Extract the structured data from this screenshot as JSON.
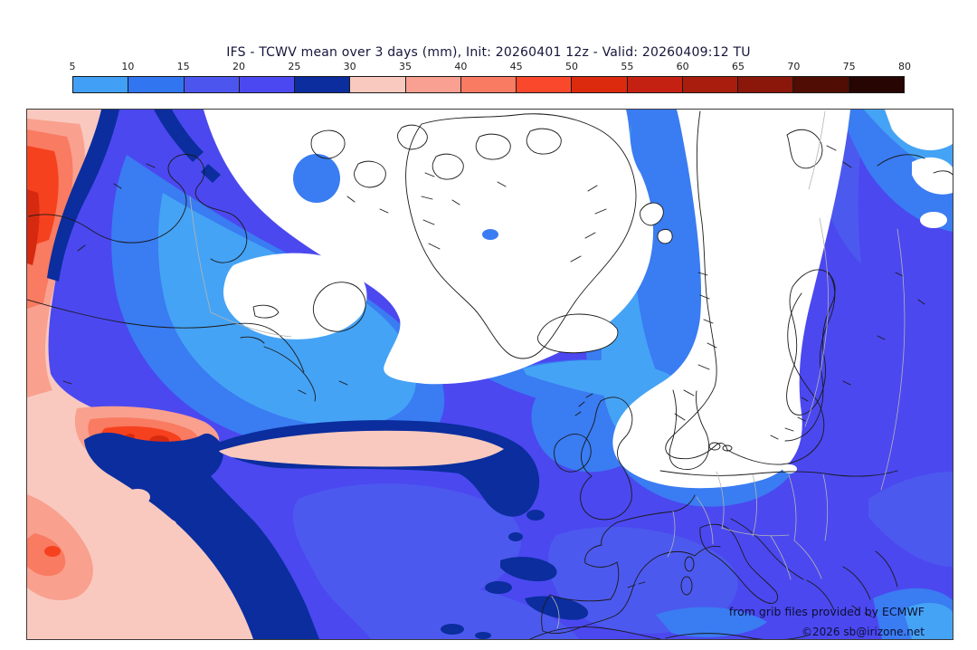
{
  "header": {
    "title": "IFS - TCWV mean over 3 days (mm), Init: 20260401 12z - Valid: 20260409:12 TU"
  },
  "colorbar": {
    "ticks": [
      "5",
      "10",
      "15",
      "20",
      "25",
      "30",
      "35",
      "40",
      "45",
      "50",
      "55",
      "60",
      "65",
      "70",
      "75",
      "80"
    ],
    "segment_colors": [
      "#41a0f5",
      "#3175f1",
      "#4c55ee",
      "#4c48f1",
      "#0b2d9e",
      "#f9c9bf",
      "#f9a093",
      "#f97b62",
      "#f9482c",
      "#dc2a0e",
      "#c52112",
      "#a81d0e",
      "#8b170a",
      "#500d04",
      "#260503"
    ]
  },
  "map": {
    "attribution_line1": "from grib files provided by ECMWF",
    "attribution_line2": "©2026 sb@irizone.net",
    "palette": {
      "tcwv_lt5": "#ffffff",
      "tcwv_5_10": "#45a3f5",
      "tcwv_10_15": "#3a7cf2",
      "tcwv_15_20": "#4c59ee",
      "tcwv_20_25": "#4b48f0",
      "tcwv_25_30": "#0b2d9e",
      "tcwv_30_35": "#f9c9bf",
      "tcwv_35_40": "#f9a08e",
      "tcwv_40_45": "#f97b61",
      "tcwv_45_50": "#f6411f",
      "tcwv_50_55": "#d62a10",
      "coastline": "#1a1a1a",
      "political_border": "#b4b4b4",
      "attribution_text": "#0c1032"
    }
  }
}
